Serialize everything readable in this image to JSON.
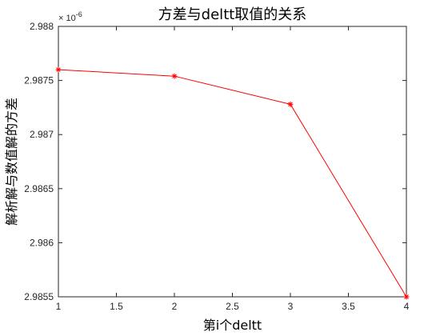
{
  "chart_data": {
    "type": "line",
    "title": "方差与deltt取值的关系",
    "xlabel": "第i个deltt",
    "ylabel": "解析解与数值解的方差",
    "x": [
      1,
      2,
      3,
      4
    ],
    "series": [
      {
        "values": [
          2.9876e-06,
          2.98754e-06,
          2.98728e-06,
          2.9855e-06
        ],
        "color": "#ff0000",
        "marker": "asterisk"
      }
    ],
    "xlim": [
      1,
      4
    ],
    "ylim": [
      2.9855e-06,
      2.988e-06
    ],
    "xticks": [
      1,
      1.5,
      2,
      2.5,
      3,
      3.5,
      4
    ],
    "xtick_labels": [
      "1",
      "1.5",
      "2",
      "2.5",
      "3",
      "3.5",
      "4"
    ],
    "yticks": [
      2.9855e-06,
      2.986e-06,
      2.9865e-06,
      2.987e-06,
      2.9875e-06,
      2.988e-06
    ],
    "ytick_labels": [
      "2.9855",
      "2.986",
      "2.9865",
      "2.987",
      "2.9875",
      "2.988"
    ],
    "y_multiplier_base": "× 10",
    "y_multiplier_exp": "-6",
    "grid": false,
    "legend": "none"
  }
}
